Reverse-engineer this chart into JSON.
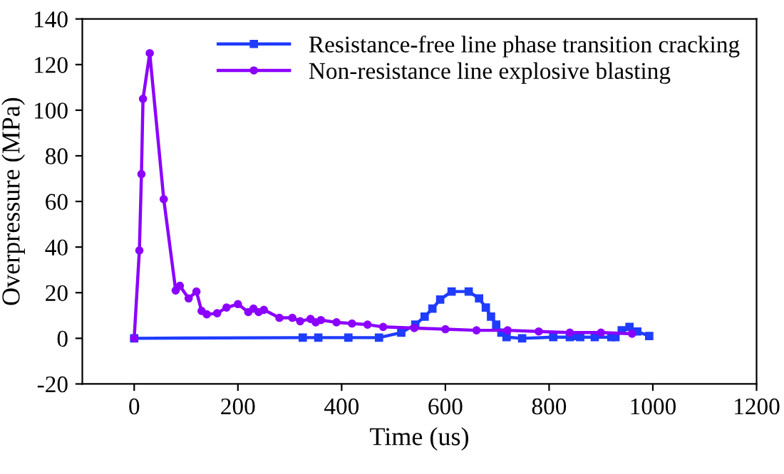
{
  "chart_data": {
    "type": "line",
    "xlabel": "Time (us)",
    "ylabel": "Overpressure (MPa)",
    "xlim": [
      -100,
      1200
    ],
    "xticks": [
      0,
      200,
      400,
      600,
      800,
      1000,
      1200
    ],
    "ylim": [
      -20,
      140
    ],
    "yticks": [
      -20,
      0,
      20,
      40,
      60,
      80,
      100,
      120,
      140
    ],
    "grid": false,
    "legend": "top right",
    "line_style": "solid",
    "series": [
      {
        "name": "Resistance-free line phase transition cracking",
        "color": "#1f3cff",
        "marker": "square",
        "x": [
          0,
          325,
          355,
          413,
          472,
          515,
          542,
          560,
          575,
          590,
          612,
          645,
          665,
          678,
          688,
          698,
          708,
          718,
          748,
          808,
          840,
          852,
          860,
          888,
          920,
          928,
          940,
          955,
          970,
          993
        ],
        "values": [
          0,
          0.3,
          0.3,
          0.3,
          0.3,
          2.5,
          6,
          9.5,
          13,
          17,
          20.5,
          20.5,
          17.5,
          13.5,
          9.5,
          6,
          2.5,
          0.5,
          0,
          0.5,
          0.5,
          1,
          0.5,
          0.5,
          0.5,
          0.5,
          3.5,
          5,
          3,
          1
        ]
      },
      {
        "name": "Non-resistance line explosive blasting",
        "color": "#8b00ff",
        "marker": "circle",
        "x": [
          0,
          10,
          14,
          17,
          30,
          57,
          80,
          88,
          105,
          120,
          130,
          140,
          160,
          178,
          200,
          220,
          230,
          240,
          250,
          280,
          305,
          320,
          340,
          350,
          360,
          390,
          420,
          450,
          480,
          540,
          600,
          660,
          720,
          780,
          840,
          900,
          960
        ],
        "values": [
          0,
          38.5,
          72,
          105,
          125,
          61,
          21,
          23,
          17.5,
          20.5,
          12,
          10.5,
          11,
          13.5,
          15,
          11.5,
          13,
          11.5,
          12.5,
          9,
          9,
          7.5,
          8.5,
          7,
          8,
          7,
          6.5,
          6,
          5,
          4.5,
          4,
          3.5,
          3.5,
          3,
          2.5,
          2.5,
          2
        ]
      }
    ]
  }
}
